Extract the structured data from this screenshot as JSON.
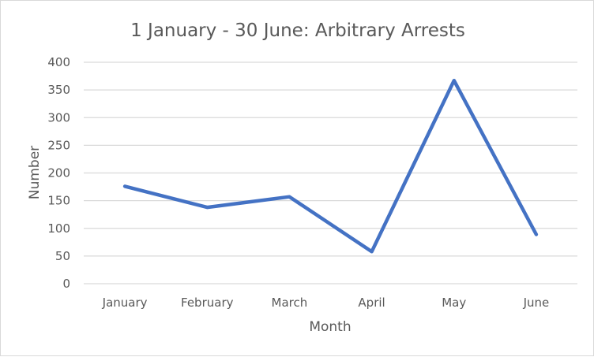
{
  "chart_data": {
    "type": "line",
    "title": "1 January - 30 June: Arbitrary Arrests",
    "xlabel": "Month",
    "ylabel": "Number",
    "categories": [
      "January",
      "February",
      "March",
      "April",
      "May",
      "June"
    ],
    "series": [
      {
        "values": [
          176,
          138,
          157,
          58,
          367,
          89
        ]
      }
    ],
    "ylim": [
      0,
      400
    ],
    "yticks": [
      "0",
      "50",
      "100",
      "150",
      "200",
      "250",
      "300",
      "350",
      "400"
    ],
    "grid": true,
    "legend": "none",
    "colors": {
      "series": "#4472c4"
    }
  }
}
